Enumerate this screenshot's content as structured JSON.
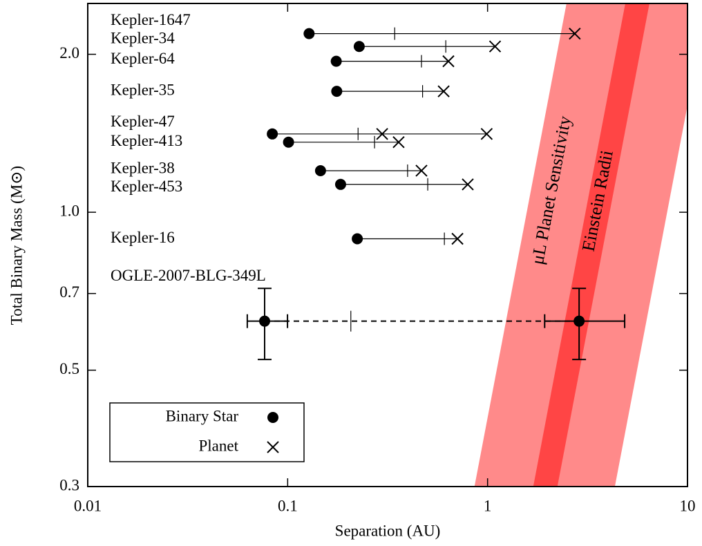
{
  "chart_data": {
    "type": "scatter",
    "xlabel": "Separation (AU)",
    "ylabel": "Total Binary Mass (M⊙)",
    "xscale": "log",
    "yscale": "log",
    "xlim": [
      0.01,
      10
    ],
    "xticks": [
      0.01,
      0.1,
      1,
      10
    ],
    "ylim": [
      0.3,
      2.5
    ],
    "yticks": [
      0.3,
      0.5,
      0.7,
      {
        "value": 1,
        "label": "1.0"
      },
      {
        "value": 2,
        "label": "2.0"
      }
    ],
    "series": [
      {
        "name": "Binary Star",
        "marker": "circle",
        "color": "#000000"
      },
      {
        "name": "Planet",
        "marker": "x",
        "color": "#000000"
      }
    ],
    "legend": "lower left",
    "bands": [
      {
        "label": "μL Planet Sensitivity",
        "color": "#ff8a8a",
        "power": 0.5,
        "range_at_1": [
          1.57,
          7.91
        ]
      },
      {
        "label": "Einstein Radii",
        "color": "#ff4545",
        "power": 0.5,
        "range_at_1": [
          3.09,
          4.08
        ]
      }
    ],
    "systems": [
      {
        "name": "Kepler-1647",
        "mass": 2.19,
        "binary_separation": 0.128,
        "planet_separations": [
          2.73
        ],
        "stability_limit": 0.343
      },
      {
        "name": "Kepler-34",
        "mass": 2.07,
        "binary_separation": 0.228,
        "planet_separations": [
          1.09
        ],
        "stability_limit": 0.618
      },
      {
        "name": "Kepler-64",
        "mass": 1.94,
        "binary_separation": 0.175,
        "planet_separations": [
          0.637
        ],
        "stability_limit": 0.467
      },
      {
        "name": "Kepler-35",
        "mass": 1.7,
        "binary_separation": 0.176,
        "planet_separations": [
          0.603
        ],
        "stability_limit": 0.473
      },
      {
        "name": "Kepler-47",
        "mass": 1.41,
        "binary_separation": 0.0838,
        "planet_separations": [
          0.297,
          0.99
        ],
        "stability_limit": 0.225
      },
      {
        "name": "Kepler-413",
        "mass": 1.36,
        "binary_separation": 0.101,
        "planet_separations": [
          0.359
        ],
        "stability_limit": 0.272
      },
      {
        "name": "Kepler-38",
        "mass": 1.2,
        "binary_separation": 0.146,
        "planet_separations": [
          0.467
        ],
        "stability_limit": 0.398
      },
      {
        "name": "Kepler-453",
        "mass": 1.13,
        "binary_separation": 0.184,
        "planet_separations": [
          0.796
        ],
        "stability_limit": 0.502
      },
      {
        "name": "Kepler-16",
        "mass": 0.89,
        "binary_separation": 0.223,
        "planet_separations": [
          0.707
        ],
        "stability_limit": 0.608
      },
      {
        "name": "OGLE-2007-BLG-349L",
        "mass": 0.62,
        "mass_range": [
          0.524,
          0.716
        ],
        "binary_separation": 0.0767,
        "binary_separation_range": [
          0.0628,
          0.0998
        ],
        "planet_separations": [
          2.87
        ],
        "planet_separation_range": [
          1.93,
          4.85
        ],
        "planet_marker": "circle",
        "line_style": "dashed",
        "stability_limit": 0.207
      }
    ]
  }
}
